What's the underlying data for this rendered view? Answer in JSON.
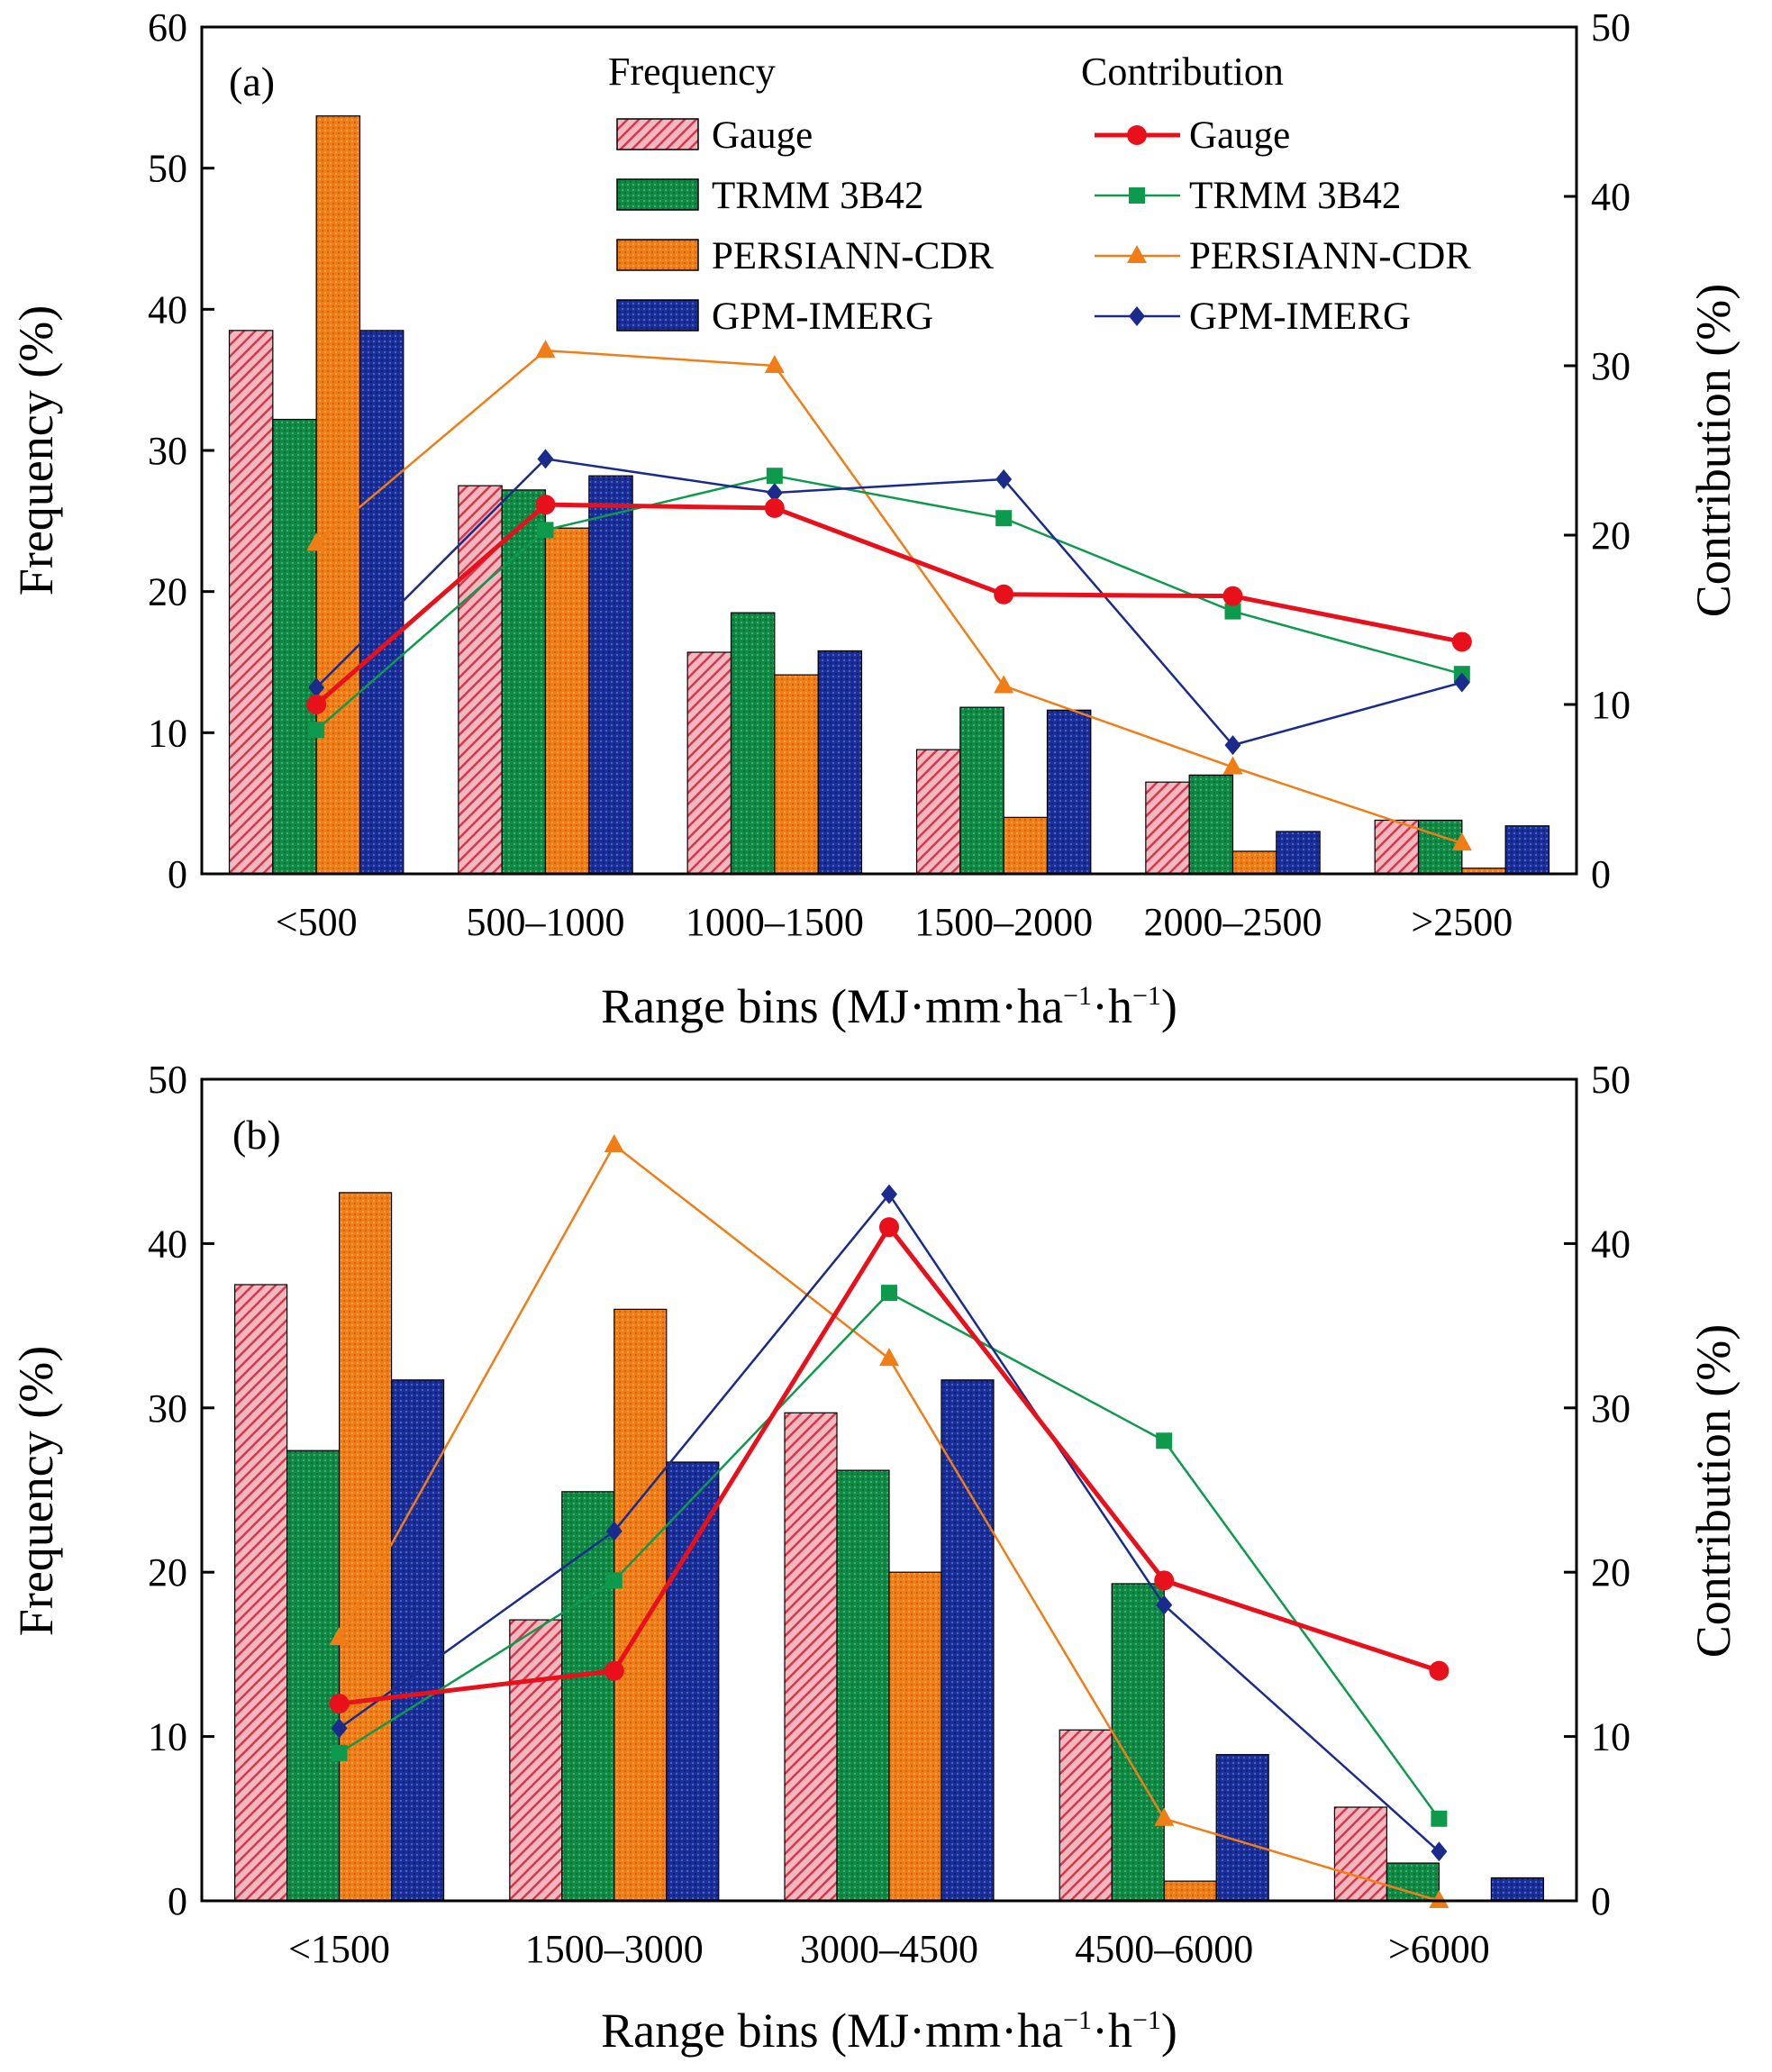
{
  "chart_data": [
    {
      "panel": "(a)",
      "type": "bar+line",
      "categories": [
        "<500",
        "500–1000",
        "1000–1500",
        "1500–2000",
        "2000–2500",
        ">2500"
      ],
      "xlabel": {
        "main": "Range bins (MJ·mm·ha",
        "sup1": "−1",
        "mid": "·h",
        "sup2": "−1",
        "end": ")"
      },
      "ylabel_left": "Frequency (%)",
      "ylabel_right": "Contribution (%)",
      "ylim_left": [
        0,
        60
      ],
      "yticks_left": [
        0,
        10,
        20,
        30,
        40,
        50,
        60
      ],
      "ylim_right": [
        0,
        50
      ],
      "yticks_right": [
        0,
        10,
        20,
        30,
        40,
        50
      ],
      "legend": {
        "frequency_title": "Frequency",
        "contribution_title": "Contribution",
        "placement": "top-center"
      },
      "frequency_series": [
        {
          "name": "Gauge",
          "values": [
            38.5,
            27.5,
            15.7,
            8.8,
            6.5,
            3.8
          ]
        },
        {
          "name": "TRMM 3B42",
          "values": [
            32.2,
            27.2,
            18.5,
            11.8,
            7.0,
            3.8
          ]
        },
        {
          "name": "PERSIANN-CDR",
          "values": [
            53.7,
            24.5,
            14.1,
            4.0,
            1.6,
            0.4
          ]
        },
        {
          "name": "GPM-IMERG",
          "values": [
            38.5,
            28.2,
            15.8,
            11.6,
            3.0,
            3.4
          ]
        }
      ],
      "contribution_series": [
        {
          "name": "Gauge",
          "values": [
            10.0,
            21.8,
            21.6,
            16.5,
            16.4,
            13.7
          ]
        },
        {
          "name": "TRMM 3B42",
          "values": [
            8.5,
            20.3,
            23.5,
            21.0,
            15.5,
            11.8
          ]
        },
        {
          "name": "PERSIANN-CDR",
          "values": [
            19.5,
            30.9,
            30.0,
            11.1,
            6.3,
            1.8
          ]
        },
        {
          "name": "GPM-IMERG",
          "values": [
            11.0,
            24.5,
            22.5,
            23.3,
            7.6,
            11.3
          ]
        }
      ]
    },
    {
      "panel": "(b)",
      "type": "bar+line",
      "categories": [
        "<1500",
        "1500–3000",
        "3000–4500",
        "4500–6000",
        ">6000"
      ],
      "xlabel": {
        "main": "Range bins (MJ·mm·ha",
        "sup1": "−1",
        "mid": "·h",
        "sup2": "−1",
        "end": ")"
      },
      "ylabel_left": "Frequency (%)",
      "ylabel_right": "Contribution (%)",
      "ylim_left": [
        0,
        50
      ],
      "yticks_left": [
        0,
        10,
        20,
        30,
        40,
        50
      ],
      "ylim_right": [
        0,
        50
      ],
      "yticks_right": [
        0,
        10,
        20,
        30,
        40,
        50
      ],
      "frequency_series": [
        {
          "name": "Gauge",
          "values": [
            37.5,
            17.1,
            29.7,
            10.4,
            5.7
          ]
        },
        {
          "name": "TRMM 3B42",
          "values": [
            27.4,
            24.9,
            26.2,
            19.3,
            2.3
          ]
        },
        {
          "name": "PERSIANN-CDR",
          "values": [
            43.1,
            36.0,
            20.0,
            1.2,
            0.0
          ]
        },
        {
          "name": "GPM-IMERG",
          "values": [
            31.7,
            26.7,
            31.7,
            8.9,
            1.4
          ]
        }
      ],
      "contribution_series": [
        {
          "name": "Gauge",
          "values": [
            12.0,
            14.0,
            41.0,
            19.5,
            14.0
          ]
        },
        {
          "name": "TRMM 3B42",
          "values": [
            9.0,
            19.5,
            37.0,
            28.0,
            5.0
          ]
        },
        {
          "name": "PERSIANN-CDR",
          "values": [
            16.0,
            46.0,
            33.0,
            5.0,
            0.0
          ]
        },
        {
          "name": "GPM-IMERG",
          "values": [
            10.5,
            22.5,
            43.0,
            18.0,
            3.0
          ]
        }
      ]
    }
  ],
  "style": {
    "colors": {
      "Gauge": "#d9364a",
      "TRMM 3B42": "#0f8a45",
      "PERSIANN-CDR": "#f07d16",
      "GPM-IMERG": "#1b2f9a"
    },
    "line_colors": {
      "Gauge": "#e8111b",
      "TRMM 3B42": "#0e9a4c",
      "PERSIANN-CDR": "#f07d16",
      "GPM-IMERG": "#1a2b8c"
    },
    "markers": {
      "Gauge": "circle",
      "TRMM 3B42": "square",
      "PERSIANN-CDR": "triangle",
      "GPM-IMERG": "diamond"
    }
  }
}
